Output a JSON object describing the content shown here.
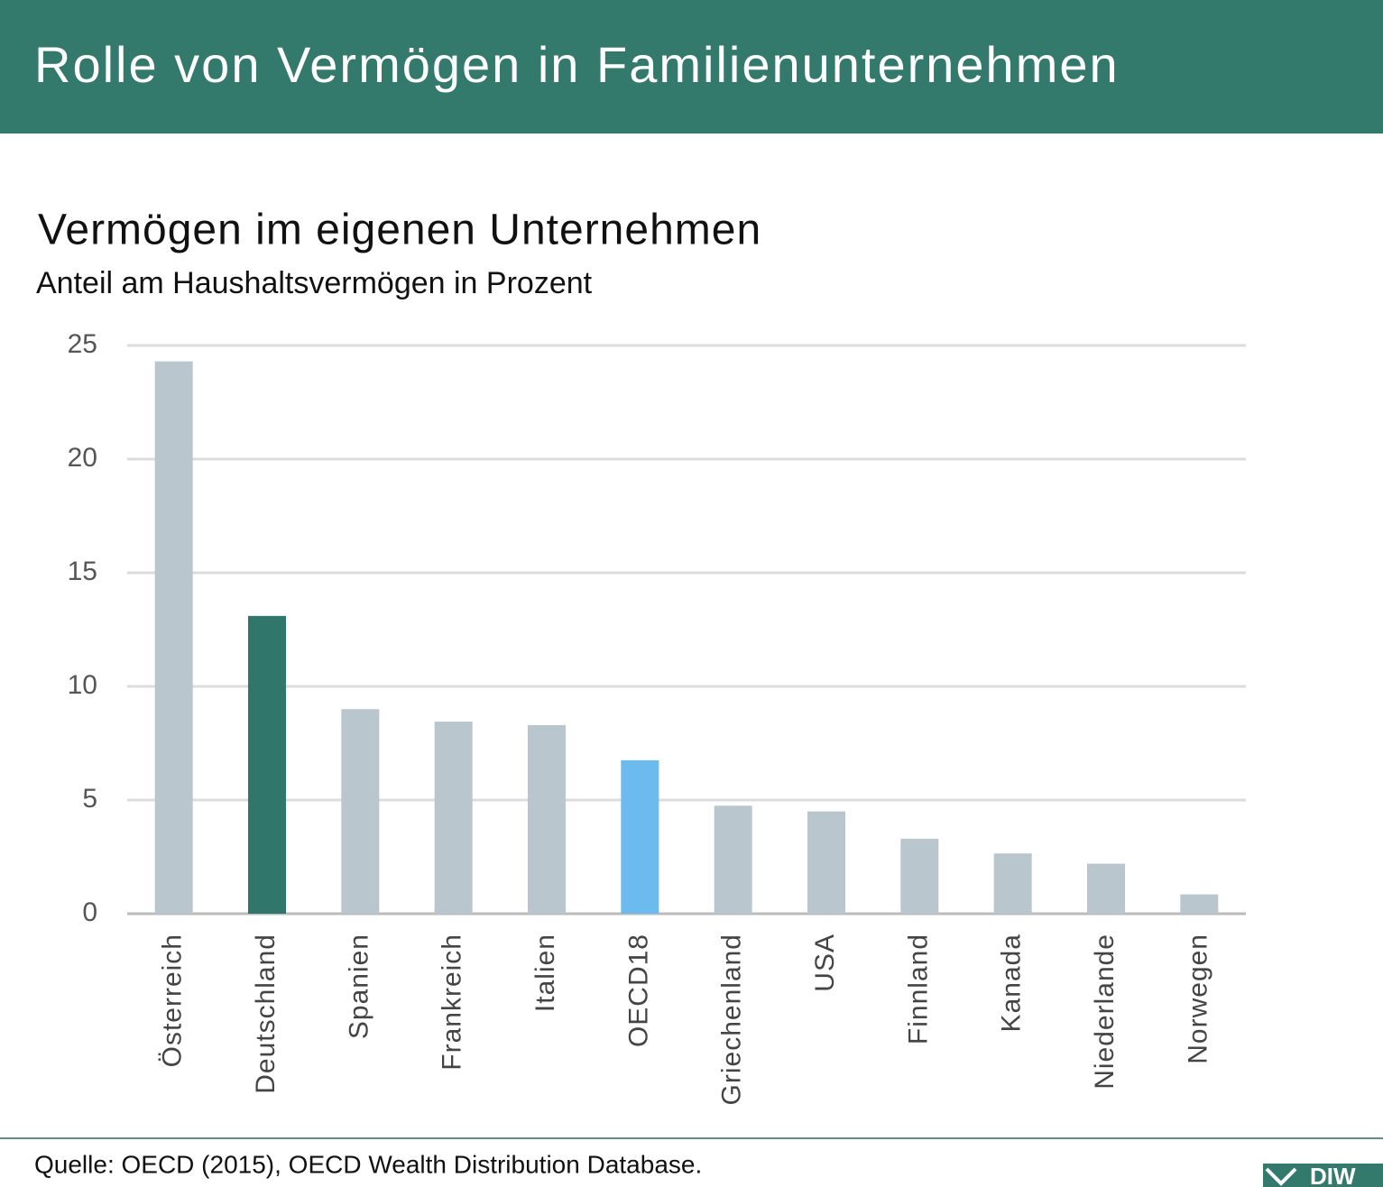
{
  "header": {
    "title": "Rolle von Vermögen in Familienunternehmen"
  },
  "chart_data": {
    "type": "bar",
    "title": "Vermögen im eigenen Unternehmen",
    "subtitle": "Anteil am Haushaltsvermögen in Prozent",
    "categories": [
      "Österreich",
      "Deutschland",
      "Spanien",
      "Frankreich",
      "Italien",
      "OECD18",
      "Griechenland",
      "USA",
      "Finnland",
      "Kanada",
      "Niederlande",
      "Norwegen"
    ],
    "values": [
      24.3,
      13.1,
      9.0,
      8.45,
      8.3,
      6.75,
      4.75,
      4.5,
      3.3,
      2.65,
      2.2,
      0.85
    ],
    "colors": [
      "#b9c6ce",
      "#31766a",
      "#b9c6ce",
      "#b9c6ce",
      "#b9c6ce",
      "#6bbbee",
      "#b9c6ce",
      "#b9c6ce",
      "#b9c6ce",
      "#b9c6ce",
      "#b9c6ce",
      "#b9c6ce"
    ],
    "ylim": [
      0,
      25
    ],
    "yticks": [
      0,
      5,
      10,
      15,
      20,
      25
    ],
    "grid": true
  },
  "footer": {
    "source": "Quelle: OECD (2015), OECD Wealth Distribution Database.",
    "logo": "DIW"
  }
}
